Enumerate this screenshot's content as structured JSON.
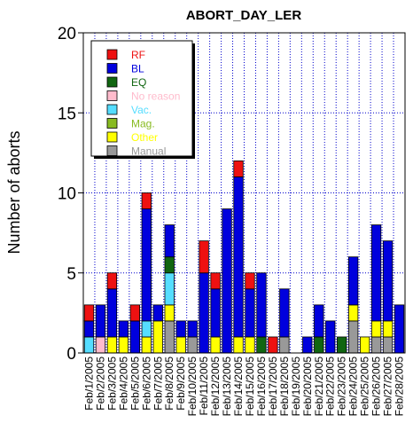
{
  "chart_data": {
    "type": "bar",
    "stacked": true,
    "title": "ABORT_DAY_LER",
    "xlabel": "",
    "ylabel": "Number of aborts",
    "ylim": [
      0,
      20
    ],
    "yticks": [
      0,
      5,
      10,
      15,
      20
    ],
    "grid": "dotted blue",
    "legend_position": "top-left",
    "categories": [
      "Feb/1/2005",
      "Feb/2/2005",
      "Feb/3/2005",
      "Feb/4/2005",
      "Feb/5/2005",
      "Feb/6/2005",
      "Feb/7/2005",
      "Feb/8/2005",
      "Feb/9/2005",
      "Feb/10/2005",
      "Feb/11/2005",
      "Feb/12/2005",
      "Feb/13/2005",
      "Feb/14/2005",
      "Feb/15/2005",
      "Feb/16/2005",
      "Feb/17/2005",
      "Feb/18/2005",
      "Feb/19/2005",
      "Feb/20/2005",
      "Feb/21/2005",
      "Feb/22/2005",
      "Feb/23/2005",
      "Feb/24/2005",
      "Feb/25/2005",
      "Feb/26/2005",
      "Feb/27/2005",
      "Feb/28/2005"
    ],
    "series": [
      {
        "name": "Manual",
        "color": "#999999",
        "values": [
          0,
          0,
          0,
          0,
          0,
          0,
          0,
          2,
          0,
          1,
          0,
          0,
          0,
          0,
          0,
          0,
          0,
          1,
          0,
          0,
          0,
          0,
          0,
          2,
          0,
          1,
          1,
          0
        ]
      },
      {
        "name": "Other",
        "color": "#ffff00",
        "values": [
          0,
          0,
          1,
          1,
          0,
          1,
          2,
          1,
          1,
          0,
          0,
          1,
          0,
          1,
          1,
          0,
          0,
          0,
          0,
          0,
          0,
          0,
          0,
          1,
          1,
          1,
          1,
          0
        ]
      },
      {
        "name": "Mag.",
        "color": "#88bb22",
        "values": [
          0,
          0,
          0,
          0,
          0,
          0,
          0,
          0,
          0,
          0,
          0,
          0,
          0,
          0,
          0,
          0,
          0,
          0,
          0,
          0,
          0,
          0,
          0,
          0,
          0,
          0,
          0,
          0
        ]
      },
      {
        "name": "Vac.",
        "color": "#55ddff",
        "values": [
          1,
          0,
          0,
          0,
          0,
          1,
          0,
          2,
          0,
          0,
          0,
          0,
          0,
          0,
          0,
          0,
          0,
          0,
          0,
          0,
          0,
          0,
          0,
          0,
          0,
          0,
          0,
          0
        ]
      },
      {
        "name": "No reason",
        "color": "#ffbbcc",
        "values": [
          0,
          1,
          0,
          0,
          0,
          0,
          0,
          0,
          0,
          0,
          0,
          0,
          0,
          0,
          0,
          0,
          0,
          0,
          0,
          0,
          0,
          0,
          0,
          0,
          0,
          0,
          0,
          0
        ]
      },
      {
        "name": "EQ",
        "color": "#116611",
        "values": [
          0,
          0,
          0,
          0,
          0,
          0,
          0,
          1,
          0,
          0,
          0,
          0,
          0,
          0,
          0,
          1,
          0,
          0,
          0,
          0,
          1,
          0,
          1,
          0,
          0,
          0,
          0,
          0
        ]
      },
      {
        "name": "BL",
        "color": "#0000dd",
        "values": [
          1,
          2,
          3,
          1,
          2,
          7,
          1,
          2,
          1,
          1,
          5,
          3,
          9,
          10,
          3,
          4,
          0,
          3,
          0,
          1,
          2,
          2,
          0,
          3,
          0,
          6,
          5,
          3
        ]
      },
      {
        "name": "RF",
        "color": "#ee1111",
        "values": [
          1,
          0,
          1,
          0,
          1,
          1,
          0,
          0,
          0,
          0,
          2,
          1,
          0,
          1,
          1,
          0,
          1,
          0,
          0,
          0,
          0,
          0,
          0,
          0,
          0,
          0,
          0,
          0
        ]
      }
    ],
    "legend_order": [
      "RF",
      "BL",
      "EQ",
      "No reason",
      "Vac.",
      "Mag.",
      "Other",
      "Manual"
    ]
  }
}
